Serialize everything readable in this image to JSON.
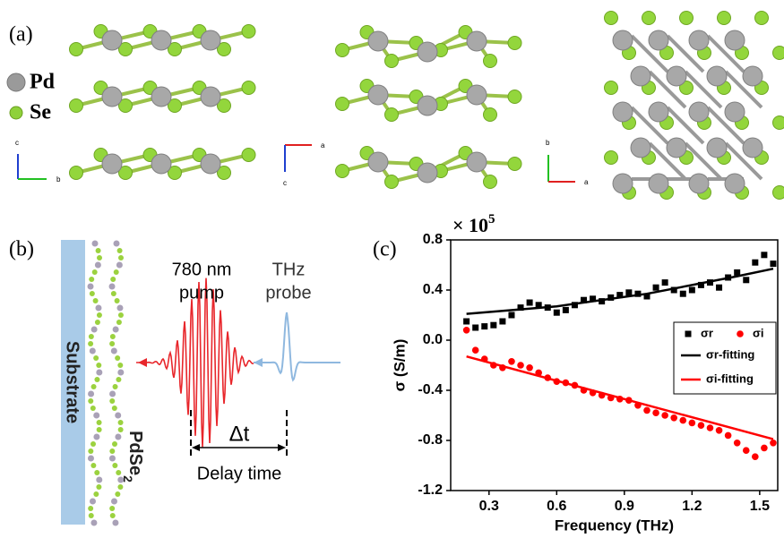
{
  "panel_a": {
    "label": "(a)",
    "legend": [
      "Pd",
      "Se"
    ],
    "axes": [
      [
        "c",
        "b"
      ],
      [
        "a",
        "c"
      ],
      [
        "b",
        "a"
      ]
    ]
  },
  "panel_b": {
    "label": "(b)",
    "substrate": "Substrate",
    "layer": "PdSe",
    "layer_sub": "2",
    "pump": [
      "780 nm",
      "pump"
    ],
    "probe": [
      "THz",
      "probe"
    ],
    "delay_symbol": "Δt",
    "delay": "Delay time"
  },
  "chart_data": {
    "type": "scatter",
    "panel_label": "(c)",
    "y_multiplier": "× 10",
    "y_multiplier_exp": "5",
    "xlabel": "Frequency (THz)",
    "ylabel": "σ (S/m)",
    "xlim": [
      0.13,
      1.58
    ],
    "xticks": [
      0.3,
      0.6,
      0.9,
      1.2,
      1.5
    ],
    "ylim": [
      -1.2,
      0.8
    ],
    "yticks": [
      -1.2,
      -0.8,
      -0.4,
      {
        "value": 0,
        "label": "0.0"
      },
      0.4,
      0.8
    ],
    "series": [
      {
        "name": "σr",
        "color": "#000000",
        "marker": "square",
        "x": [
          0.2,
          0.24,
          0.28,
          0.32,
          0.36,
          0.4,
          0.44,
          0.48,
          0.52,
          0.56,
          0.6,
          0.64,
          0.68,
          0.72,
          0.76,
          0.8,
          0.84,
          0.88,
          0.92,
          0.96,
          1.0,
          1.04,
          1.08,
          1.12,
          1.16,
          1.2,
          1.24,
          1.28,
          1.32,
          1.36,
          1.4,
          1.44,
          1.48,
          1.52,
          1.56
        ],
        "values": [
          0.15,
          0.1,
          0.11,
          0.12,
          0.15,
          0.2,
          0.26,
          0.3,
          0.28,
          0.26,
          0.22,
          0.24,
          0.28,
          0.32,
          0.33,
          0.31,
          0.34,
          0.36,
          0.38,
          0.37,
          0.35,
          0.42,
          0.46,
          0.4,
          0.37,
          0.4,
          0.44,
          0.46,
          0.42,
          0.5,
          0.54,
          0.48,
          0.62,
          0.68,
          0.61
        ]
      },
      {
        "name": "σi",
        "color": "#ff0000",
        "marker": "circle",
        "x": [
          0.2,
          0.24,
          0.28,
          0.32,
          0.36,
          0.4,
          0.44,
          0.48,
          0.52,
          0.56,
          0.6,
          0.64,
          0.68,
          0.72,
          0.76,
          0.8,
          0.84,
          0.88,
          0.92,
          0.96,
          1.0,
          1.04,
          1.08,
          1.12,
          1.16,
          1.2,
          1.24,
          1.28,
          1.32,
          1.36,
          1.4,
          1.44,
          1.48,
          1.52,
          1.56
        ],
        "values": [
          0.08,
          -0.08,
          -0.15,
          -0.2,
          -0.22,
          -0.17,
          -0.2,
          -0.22,
          -0.26,
          -0.3,
          -0.33,
          -0.34,
          -0.36,
          -0.4,
          -0.42,
          -0.44,
          -0.46,
          -0.47,
          -0.48,
          -0.52,
          -0.56,
          -0.58,
          -0.6,
          -0.62,
          -0.64,
          -0.66,
          -0.68,
          -0.7,
          -0.72,
          -0.76,
          -0.82,
          -0.88,
          -0.93,
          -0.86,
          -0.82
        ]
      },
      {
        "name": "σr-fitting",
        "color": "#000000",
        "marker": "line",
        "x": [
          0.2,
          0.6,
          1.0,
          1.4,
          1.56
        ],
        "values": [
          0.21,
          0.27,
          0.37,
          0.51,
          0.57
        ]
      },
      {
        "name": "σi-fitting",
        "color": "#ff0000",
        "marker": "line",
        "x": [
          0.2,
          1.56
        ],
        "values": [
          -0.13,
          -0.79
        ]
      }
    ]
  }
}
